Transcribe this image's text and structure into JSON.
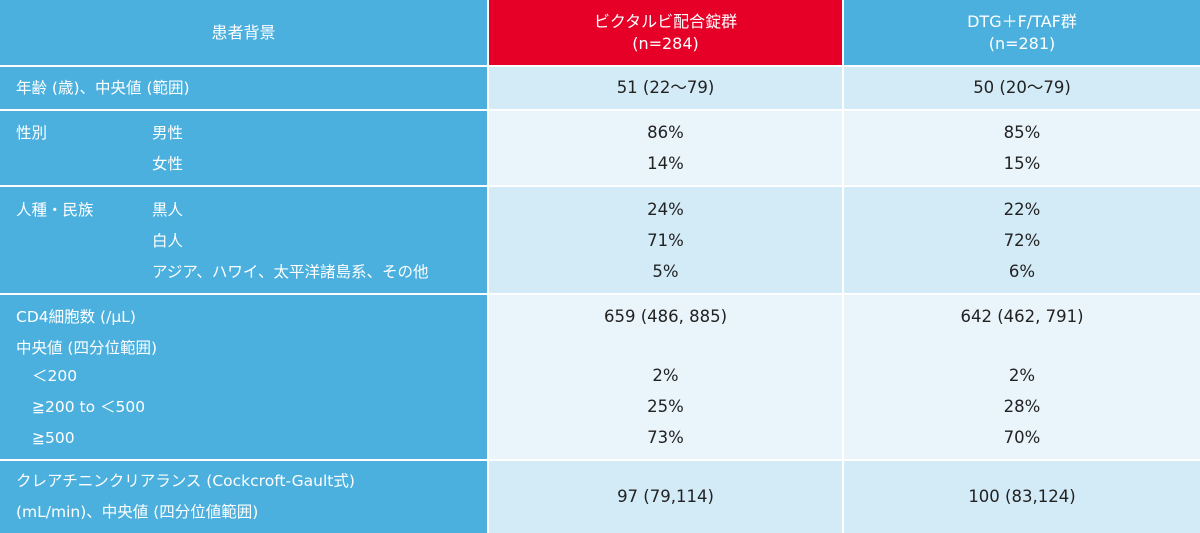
{
  "header": {
    "col0": "患者背景",
    "col1_line1": "ビクタルビ配合錠群",
    "col1_line2": "(n=284)",
    "col2_line1": "DTG＋F/TAF群",
    "col2_line2": "(n=281)"
  },
  "age": {
    "label": "年齢 (歳)、中央値 (範囲)",
    "val1": "51 (22〜79)",
    "val2": "50 (20〜79)"
  },
  "sex": {
    "label": "性別",
    "male_label": "男性",
    "female_label": "女性",
    "male_val1": "86%",
    "female_val1": "14%",
    "male_val2": "85%",
    "female_val2": "15%"
  },
  "race": {
    "label": "人種・民族",
    "black_label": "黒人",
    "white_label": "白人",
    "asian_label": "アジア、ハワイ、太平洋諸島系、その他",
    "black_val1": "24%",
    "white_val1": "71%",
    "asian_val1": "5%",
    "black_val2": "22%",
    "white_val2": "72%",
    "asian_val2": "6%"
  },
  "cd4": {
    "label_line1": "CD4細胞数 (/μL)",
    "label_line2": "中央値 (四分位範囲)",
    "lt200_label": "＜200",
    "mid_label": "≧200 to ＜500",
    "ge500_label": "≧500",
    "median_val1": "659 (486, 885)",
    "lt200_val1": "2%",
    "mid_val1": "25%",
    "ge500_val1": "73%",
    "median_val2": "642 (462, 791)",
    "lt200_val2": "2%",
    "mid_val2": "28%",
    "ge500_val2": "70%"
  },
  "crcl": {
    "label_line1": "クレアチニンクリアランス (Cockcroft-Gault式)",
    "label_line2": "(mL/min)、中央値 (四分位値範囲)",
    "val1": "97 (79,114)",
    "val2": "100 (83,124)"
  },
  "colors": {
    "header_blue": "#4bb0de",
    "header_red": "#e60027",
    "row_light": "#d3eaf7",
    "row_lighter": "#e9f4fb"
  }
}
